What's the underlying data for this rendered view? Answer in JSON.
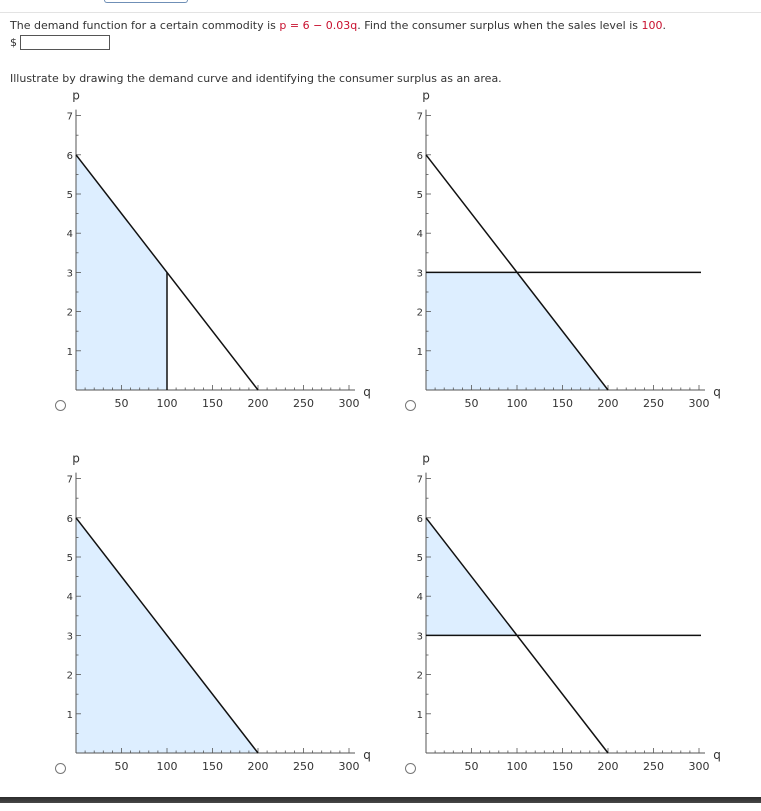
{
  "question": {
    "prefix": "The demand function for a certain commodity is ",
    "function": "p = 6 − 0.03q",
    "middle": ".  Find the consumer surplus when the sales level is ",
    "sales_level": "100",
    "suffix": "."
  },
  "answer": {
    "currency_symbol": "$",
    "value": ""
  },
  "illustrate_text": "Illustrate by drawing the demand curve and identifying the consumer surplus as an area.",
  "colors": {
    "shade": "#ddeeff",
    "line": "#111111",
    "accent": "#c8102e"
  },
  "axes": {
    "y_label": "p",
    "x_label": "q",
    "y_ticks": [
      "1",
      "2",
      "3",
      "4",
      "5",
      "6",
      "7"
    ],
    "x_ticks": [
      "50",
      "100",
      "150",
      "200",
      "250",
      "300"
    ],
    "x_range": [
      0,
      300
    ],
    "y_range": [
      0,
      7
    ]
  },
  "demand_curve": {
    "p_intercept": 6,
    "q_intercept": 200
  },
  "options": [
    {
      "id": "A",
      "shaded_region": "triangle-area-under-curve-0-to-100",
      "vertical_line_at_q": 100,
      "horizontal_line_at_p": null
    },
    {
      "id": "B",
      "shaded_region": "below-price-line-under-curve",
      "vertical_line_at_q": null,
      "horizontal_line_at_p": 3
    },
    {
      "id": "C",
      "shaded_region": "entire-area-under-curve",
      "vertical_line_at_q": null,
      "horizontal_line_at_p": null
    },
    {
      "id": "D",
      "shaded_region": "above-price-line-below-curve",
      "vertical_line_at_q": null,
      "horizontal_line_at_p": 3
    }
  ]
}
